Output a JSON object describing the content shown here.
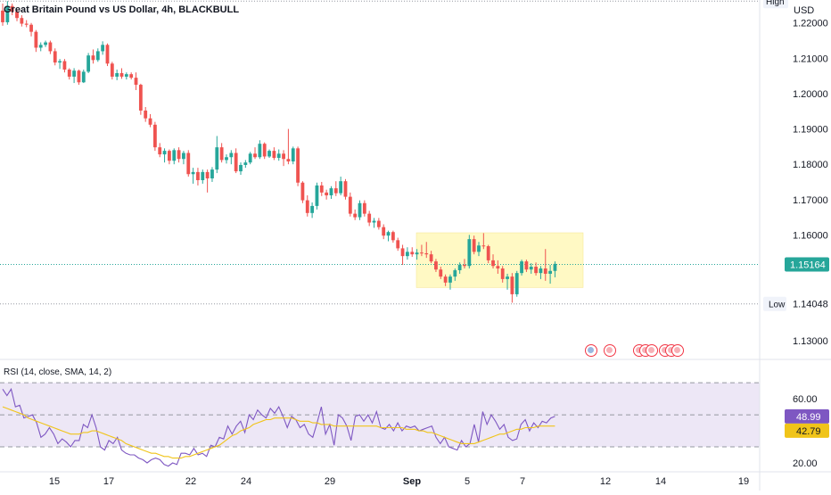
{
  "chart_data": {
    "type": "candlestick",
    "title": "Great Britain Pound vs US Dollar, 4h, BLACKBULL",
    "currency": "USD",
    "colors": {
      "up": "#26a69a",
      "down": "#ef5350",
      "rsi": "#7e57c2",
      "rsi_ma": "#f0c419",
      "range_box": "#fff9c4",
      "rsi_band": "#ede7f6"
    },
    "y_ticks": [
      "1.22000",
      "1.21000",
      "1.20000",
      "1.19000",
      "1.18000",
      "1.17000",
      "1.16000",
      "1.13000"
    ],
    "ylim": [
      1.125,
      1.2265
    ],
    "x_ticks": [
      "15",
      "17",
      "22",
      "24",
      "29",
      "Sep",
      "5",
      "7",
      "12",
      "14",
      "19"
    ],
    "high_label": "High",
    "low_label": "Low",
    "low_value": "1.14048",
    "last_price": "1.15164",
    "levels": {
      "high": 1.2262,
      "low": 1.14048,
      "last": 1.15164
    },
    "range_box": {
      "top": 1.1606,
      "bottom": 1.1451
    },
    "candles": [
      [
        1.2235,
        1.2255,
        1.2192,
        1.2202
      ],
      [
        1.2202,
        1.2262,
        1.2195,
        1.2248
      ],
      [
        1.2248,
        1.2255,
        1.2222,
        1.2232
      ],
      [
        1.2232,
        1.2238,
        1.2205,
        1.2214
      ],
      [
        1.2214,
        1.2222,
        1.219,
        1.2198
      ],
      [
        1.2198,
        1.2208,
        1.2188,
        1.2195
      ],
      [
        1.2195,
        1.22,
        1.2162,
        1.2175
      ],
      [
        1.2175,
        1.218,
        1.2118,
        1.213
      ],
      [
        1.213,
        1.2145,
        1.212,
        1.2138
      ],
      [
        1.2138,
        1.215,
        1.2132,
        1.2145
      ],
      [
        1.2145,
        1.215,
        1.2112,
        1.212
      ],
      [
        1.212,
        1.2128,
        1.208,
        1.2088
      ],
      [
        1.2088,
        1.2098,
        1.207,
        1.2092
      ],
      [
        1.2092,
        1.2098,
        1.206,
        1.2068
      ],
      [
        1.2068,
        1.2072,
        1.204,
        1.2048
      ],
      [
        1.2048,
        1.2072,
        1.203,
        1.2065
      ],
      [
        1.2065,
        1.2068,
        1.2025,
        1.2032
      ],
      [
        1.2032,
        1.2068,
        1.203,
        1.2062
      ],
      [
        1.2062,
        1.2115,
        1.2058,
        1.2108
      ],
      [
        1.2108,
        1.2125,
        1.2085,
        1.2095
      ],
      [
        1.2095,
        1.2128,
        1.209,
        1.212
      ],
      [
        1.212,
        1.2148,
        1.211,
        1.2138
      ],
      [
        1.2138,
        1.2142,
        1.2078,
        1.2085
      ],
      [
        1.2085,
        1.209,
        1.204,
        1.2048
      ],
      [
        1.2048,
        1.2068,
        1.2038,
        1.2058
      ],
      [
        1.2058,
        1.2072,
        1.2042,
        1.2048
      ],
      [
        1.2048,
        1.206,
        1.204,
        1.2055
      ],
      [
        1.2055,
        1.206,
        1.204,
        1.2045
      ],
      [
        1.2045,
        1.206,
        1.201,
        1.2025
      ],
      [
        1.2025,
        1.2028,
        1.194,
        1.1952
      ],
      [
        1.1952,
        1.1962,
        1.192,
        1.193
      ],
      [
        1.193,
        1.1942,
        1.1905,
        1.1912
      ],
      [
        1.1912,
        1.192,
        1.1838,
        1.1848
      ],
      [
        1.1848,
        1.186,
        1.182,
        1.1828
      ],
      [
        1.1828,
        1.1845,
        1.1805,
        1.1838
      ],
      [
        1.1838,
        1.1842,
        1.18,
        1.181
      ],
      [
        1.181,
        1.1845,
        1.18,
        1.184
      ],
      [
        1.184,
        1.1848,
        1.1805,
        1.1815
      ],
      [
        1.1815,
        1.1838,
        1.18,
        1.1832
      ],
      [
        1.1832,
        1.184,
        1.1765,
        1.1772
      ],
      [
        1.1772,
        1.179,
        1.1745,
        1.1778
      ],
      [
        1.1778,
        1.179,
        1.174,
        1.1755
      ],
      [
        1.1755,
        1.1785,
        1.1745,
        1.1778
      ],
      [
        1.1778,
        1.1785,
        1.172,
        1.176
      ],
      [
        1.176,
        1.1792,
        1.175,
        1.1785
      ],
      [
        1.1785,
        1.188,
        1.1775,
        1.1848
      ],
      [
        1.1848,
        1.186,
        1.1805,
        1.1812
      ],
      [
        1.1812,
        1.1828,
        1.1802,
        1.182
      ],
      [
        1.182,
        1.184,
        1.18,
        1.1832
      ],
      [
        1.1832,
        1.1845,
        1.1775,
        1.178
      ],
      [
        1.178,
        1.1805,
        1.177,
        1.1798
      ],
      [
        1.1798,
        1.1812,
        1.179,
        1.1805
      ],
      [
        1.1805,
        1.1835,
        1.18,
        1.183
      ],
      [
        1.183,
        1.1848,
        1.1815,
        1.182
      ],
      [
        1.182,
        1.1868,
        1.1815,
        1.1858
      ],
      [
        1.1858,
        1.1862,
        1.1815,
        1.1822
      ],
      [
        1.1822,
        1.1842,
        1.1818,
        1.1838
      ],
      [
        1.1838,
        1.1848,
        1.1812,
        1.1818
      ],
      [
        1.1818,
        1.1842,
        1.181,
        1.183
      ],
      [
        1.183,
        1.184,
        1.1795,
        1.1815
      ],
      [
        1.1815,
        1.19,
        1.18,
        1.1808
      ],
      [
        1.1808,
        1.185,
        1.18,
        1.1845
      ],
      [
        1.1845,
        1.185,
        1.1738,
        1.1748
      ],
      [
        1.1748,
        1.1752,
        1.169,
        1.1698
      ],
      [
        1.1698,
        1.1712,
        1.1652,
        1.1662
      ],
      [
        1.1662,
        1.1692,
        1.1648,
        1.1682
      ],
      [
        1.1682,
        1.1748,
        1.1672,
        1.174
      ],
      [
        1.174,
        1.175,
        1.171,
        1.172
      ],
      [
        1.172,
        1.1728,
        1.17,
        1.1712
      ],
      [
        1.1712,
        1.1738,
        1.1702,
        1.1732
      ],
      [
        1.1732,
        1.1752,
        1.171,
        1.1718
      ],
      [
        1.1718,
        1.1765,
        1.1712,
        1.1752
      ],
      [
        1.1752,
        1.1758,
        1.17,
        1.1708
      ],
      [
        1.1708,
        1.172,
        1.1652,
        1.166
      ],
      [
        1.166,
        1.1672,
        1.1642,
        1.165
      ],
      [
        1.165,
        1.1698,
        1.1642,
        1.169
      ],
      [
        1.169,
        1.1698,
        1.1652,
        1.166
      ],
      [
        1.166,
        1.1668,
        1.1625,
        1.1635
      ],
      [
        1.1635,
        1.1648,
        1.162,
        1.164
      ],
      [
        1.164,
        1.1648,
        1.1615,
        1.1622
      ],
      [
        1.1622,
        1.163,
        1.1588,
        1.1598
      ],
      [
        1.1598,
        1.1612,
        1.1582,
        1.1608
      ],
      [
        1.1608,
        1.1612,
        1.1578,
        1.1585
      ],
      [
        1.1585,
        1.1592,
        1.1555,
        1.1562
      ],
      [
        1.1562,
        1.1572,
        1.1515,
        1.154
      ],
      [
        1.154,
        1.1565,
        1.153,
        1.1552
      ],
      [
        1.1552,
        1.1565,
        1.1538,
        1.1545
      ],
      [
        1.1545,
        1.156,
        1.153,
        1.155
      ],
      [
        1.155,
        1.1572,
        1.154,
        1.1548
      ],
      [
        1.1548,
        1.158,
        1.1535,
        1.1545
      ],
      [
        1.1545,
        1.1555,
        1.152,
        1.1525
      ],
      [
        1.1525,
        1.1532,
        1.1495,
        1.1502
      ],
      [
        1.1502,
        1.151,
        1.1475,
        1.1482
      ],
      [
        1.1482,
        1.1488,
        1.1455,
        1.1465
      ],
      [
        1.1465,
        1.1488,
        1.1445,
        1.1482
      ],
      [
        1.1482,
        1.1505,
        1.147,
        1.15
      ],
      [
        1.15,
        1.1522,
        1.149,
        1.1515
      ],
      [
        1.1515,
        1.1532,
        1.1505,
        1.1512
      ],
      [
        1.1512,
        1.16,
        1.1505,
        1.1588
      ],
      [
        1.1588,
        1.1598,
        1.1545,
        1.1552
      ],
      [
        1.1552,
        1.158,
        1.154,
        1.157
      ],
      [
        1.157,
        1.1605,
        1.156,
        1.1568
      ],
      [
        1.1568,
        1.1572,
        1.152,
        1.1528
      ],
      [
        1.1528,
        1.1545,
        1.1505,
        1.1512
      ],
      [
        1.1512,
        1.1528,
        1.149,
        1.1505
      ],
      [
        1.1505,
        1.1512,
        1.1465,
        1.1475
      ],
      [
        1.1475,
        1.149,
        1.1445,
        1.1482
      ],
      [
        1.1482,
        1.1492,
        1.1408,
        1.1432
      ],
      [
        1.1432,
        1.1498,
        1.1425,
        1.1492
      ],
      [
        1.1492,
        1.153,
        1.1485,
        1.1525
      ],
      [
        1.1525,
        1.153,
        1.1495,
        1.1502
      ],
      [
        1.1502,
        1.152,
        1.149,
        1.151
      ],
      [
        1.151,
        1.1522,
        1.1485,
        1.1492
      ],
      [
        1.1492,
        1.1512,
        1.1475,
        1.1505
      ],
      [
        1.1505,
        1.156,
        1.147,
        1.149
      ],
      [
        1.149,
        1.1515,
        1.1462,
        1.1498
      ],
      [
        1.1498,
        1.1525,
        1.148,
        1.1518
      ]
    ],
    "rsi": {
      "label": "RSI (14, close, SMA, 14, 2)",
      "ylim": [
        15,
        84
      ],
      "ticks": [
        "60.00",
        "20.00"
      ],
      "upper_band": 70,
      "lower_band": 30,
      "middle": 50,
      "value_label": "48.99",
      "ma_label": "42.79",
      "values": [
        66,
        62,
        66,
        55,
        56,
        48,
        49,
        50,
        45,
        36,
        38,
        42,
        38,
        32,
        35,
        33,
        30,
        34,
        34,
        44,
        42,
        50,
        42,
        30,
        28,
        34,
        32,
        36,
        28,
        26,
        25,
        25,
        23,
        22,
        20,
        22,
        23,
        22,
        19,
        18,
        20,
        19,
        26,
        26,
        25,
        29,
        25,
        26,
        24,
        31,
        30,
        36,
        35,
        43,
        38,
        43,
        46,
        39,
        50,
        47,
        53,
        50,
        48,
        54,
        51,
        55,
        49,
        42,
        49,
        47,
        42,
        44,
        38,
        36,
        45,
        55,
        38,
        44,
        31,
        50,
        48,
        43,
        34,
        49,
        50,
        46,
        50,
        45,
        52,
        42,
        41,
        44,
        40,
        45,
        40,
        43,
        42,
        43,
        40,
        41,
        42,
        43,
        36,
        32,
        36,
        30,
        29,
        28,
        34,
        30,
        32,
        44,
        33,
        52,
        44,
        50,
        46,
        41,
        44,
        36,
        34,
        35,
        44,
        47,
        40,
        45,
        42,
        46,
        45,
        48,
        49
      ],
      "ma_values": [
        55,
        54,
        53,
        52,
        51,
        50,
        48,
        47,
        46,
        45,
        44,
        43,
        42,
        41,
        40,
        39,
        38,
        38,
        38,
        39,
        39,
        40,
        40,
        39,
        38,
        37,
        36,
        35,
        34,
        32,
        31,
        30,
        29,
        28,
        27,
        26,
        26,
        25,
        24,
        24,
        23,
        23,
        23,
        24,
        24,
        25,
        26,
        27,
        28,
        29,
        30,
        31,
        33,
        35,
        37,
        38,
        40,
        41,
        42,
        44,
        45,
        46,
        47,
        47,
        48,
        48,
        48,
        48,
        48,
        47,
        46,
        46,
        46,
        45,
        45,
        44,
        44,
        44,
        43,
        43,
        43,
        43,
        43,
        43,
        43,
        43,
        43,
        43,
        43,
        42,
        42,
        42,
        42,
        42,
        42,
        41,
        41,
        41,
        40,
        40,
        39,
        39,
        38,
        37,
        36,
        35,
        34,
        33,
        32,
        32,
        32,
        32,
        33,
        34,
        35,
        36,
        37,
        38,
        38,
        39,
        40,
        41,
        41,
        42,
        42,
        42,
        43,
        43,
        43,
        43,
        43
      ]
    }
  }
}
